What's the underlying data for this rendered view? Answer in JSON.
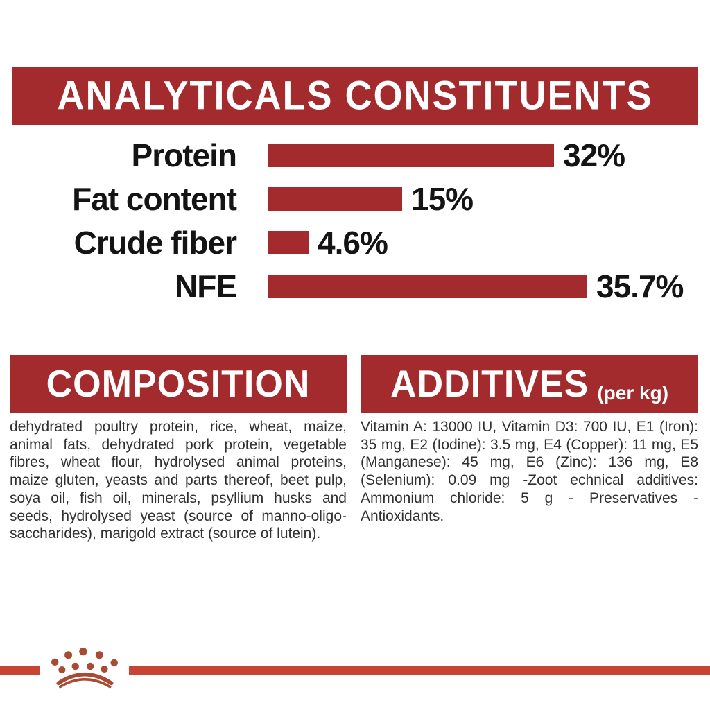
{
  "header": {
    "title": "ANALYTICALS CONSTITUENTS"
  },
  "chart_data": {
    "type": "bar",
    "orientation": "horizontal",
    "title": "ANALYTICALS CONSTITUENTS",
    "categories": [
      "Protein",
      "Fat content",
      "Crude fiber",
      "NFE"
    ],
    "values": [
      32,
      15,
      4.6,
      35.7
    ],
    "value_labels": [
      "32%",
      "15%",
      "4.6%",
      "35.7%"
    ],
    "unit": "%",
    "xlim": [
      0,
      38
    ],
    "bar_color": "#A32B2D",
    "grid": false,
    "legend": false
  },
  "composition": {
    "heading": "COMPOSITION",
    "body": "dehydrated poultry protein, rice, wheat, maize, animal fats, dehydrated pork protein, vegetable fibres, wheat flour, hydrolysed animal proteins, maize gluten, yeasts and parts thereof, beet pulp, soya oil, fish oil, minerals, psyllium husks and seeds, hydrolysed yeast (source of manno-oligo-saccharides), marigold extract (source of lutein)."
  },
  "additives": {
    "heading": "ADDITIVES",
    "heading_suffix": "(per kg)",
    "body": "Vitamin A: 13000 IU, Vitamin D3: 700 IU, E1 (Iron): 35 mg, E2 (Iodine): 3.5 mg, E4 (Copper): 11 mg, E5 (Manganese): 45 mg, E6 (Zinc): 136 mg, E8 (Selenium): 0.09 mg -Zoot echnical additives: Ammonium chloride: 5 g - Preservatives - Antioxidants."
  },
  "branding": {
    "logo": "royal-canin-crown"
  },
  "colors": {
    "banner_red": "#A32B2D",
    "bar_red": "#A32B2D",
    "divider_red": "#C84534",
    "crown_red": "#A84A34",
    "label_black": "#141414",
    "body_text": "#303030"
  }
}
